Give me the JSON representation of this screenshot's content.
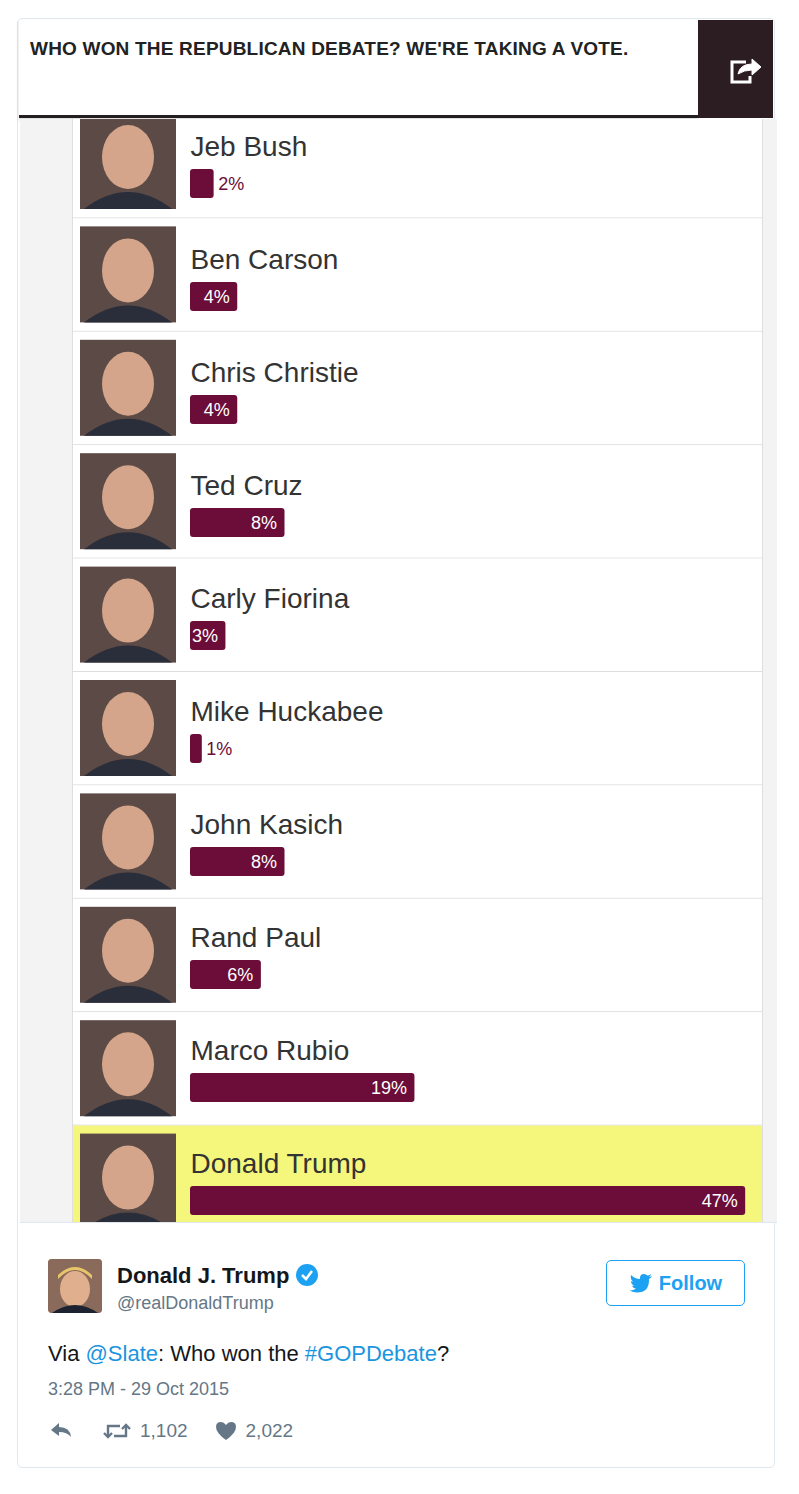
{
  "chart_data": {
    "type": "bar",
    "orientation": "horizontal",
    "title": "WHO WON THE REPUBLICAN DEBATE? WE'RE TAKING A VOTE.",
    "categories": [
      "Jeb Bush",
      "Ben Carson",
      "Chris Christie",
      "Ted Cruz",
      "Carly Fiorina",
      "Mike Huckabee",
      "John Kasich",
      "Rand Paul",
      "Marco Rubio",
      "Donald Trump"
    ],
    "values": [
      2,
      4,
      4,
      8,
      3,
      1,
      8,
      6,
      19,
      47
    ],
    "value_labels": [
      "2%",
      "4%",
      "4%",
      "8%",
      "3%",
      "1%",
      "8%",
      "6%",
      "19%",
      "47%"
    ],
    "color": "#6b0d38",
    "xlim": [
      0,
      48
    ],
    "xticks": [],
    "tick_labels": false,
    "data_labels": true
  },
  "tweet": {
    "name": "Donald J. Trump",
    "handle": "@realDonaldTrump",
    "button": "Follow",
    "text": "Via @Slate: Who won the #GOPDebate?",
    "timestamp": "3:28 PM - 29 Oct 2015",
    "retweets": 1102,
    "likes": 2022
  }
}
